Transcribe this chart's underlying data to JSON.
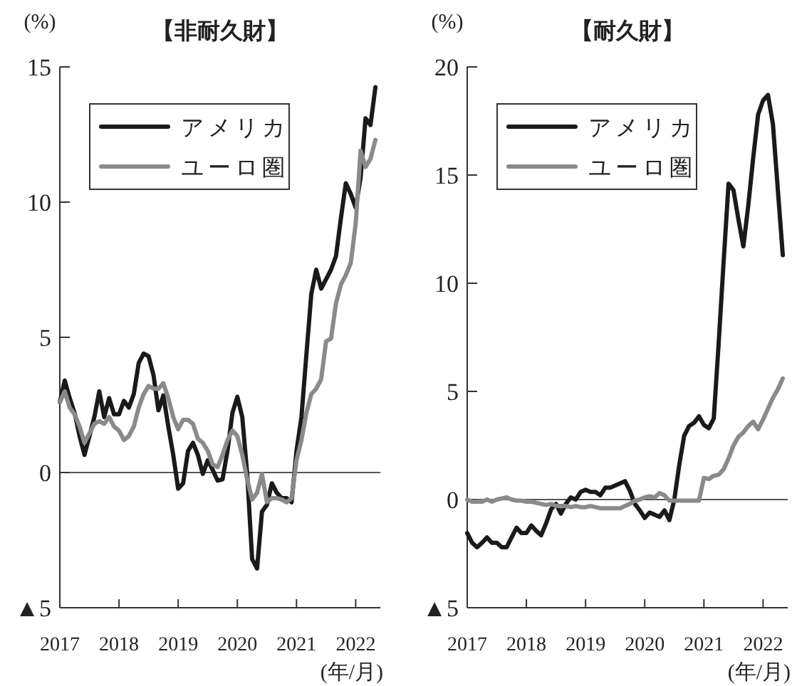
{
  "chart_data": [
    {
      "type": "line",
      "title": "【非耐久財】",
      "ylabel": "(%)",
      "xlabel": "(年/月)",
      "x": [
        "2017-01",
        "2017-02",
        "2017-03",
        "2017-04",
        "2017-05",
        "2017-06",
        "2017-07",
        "2017-08",
        "2017-09",
        "2017-10",
        "2017-11",
        "2017-12",
        "2018-01",
        "2018-02",
        "2018-03",
        "2018-04",
        "2018-05",
        "2018-06",
        "2018-07",
        "2018-08",
        "2018-09",
        "2018-10",
        "2018-11",
        "2018-12",
        "2019-01",
        "2019-02",
        "2019-03",
        "2019-04",
        "2019-05",
        "2019-06",
        "2019-07",
        "2019-08",
        "2019-09",
        "2019-10",
        "2019-11",
        "2019-12",
        "2020-01",
        "2020-02",
        "2020-03",
        "2020-04",
        "2020-05",
        "2020-06",
        "2020-07",
        "2020-08",
        "2020-09",
        "2020-10",
        "2020-11",
        "2020-12",
        "2021-01",
        "2021-02",
        "2021-03",
        "2021-04",
        "2021-05",
        "2021-06",
        "2021-07",
        "2021-08",
        "2021-09",
        "2021-10",
        "2021-11",
        "2021-12",
        "2022-01",
        "2022-02",
        "2022-03",
        "2022-04",
        "2022-05"
      ],
      "series": [
        {
          "name": "アメリカ",
          "color": "#1a1a1a",
          "values": [
            2.6,
            3.4,
            2.75,
            2.2,
            1.35,
            0.65,
            1.35,
            2.05,
            3.0,
            2.05,
            2.75,
            2.15,
            2.15,
            2.65,
            2.4,
            2.9,
            4.05,
            4.4,
            4.3,
            3.6,
            2.3,
            2.85,
            1.7,
            0.65,
            -0.6,
            -0.4,
            0.8,
            1.1,
            0.65,
            -0.05,
            0.45,
            0.1,
            -0.3,
            -0.25,
            0.8,
            2.2,
            2.8,
            2.05,
            -0.05,
            -3.2,
            -3.55,
            -1.45,
            -1.2,
            -0.4,
            -0.75,
            -0.95,
            -0.95,
            -1.1,
            0.8,
            2.05,
            4.35,
            6.6,
            7.5,
            6.8,
            7.15,
            7.5,
            8.0,
            9.4,
            10.7,
            10.3,
            9.8,
            10.9,
            13.1,
            12.85,
            14.25
          ]
        },
        {
          "name": "ユーロ圏",
          "color": "#8a8a8a",
          "values": [
            2.6,
            3.0,
            2.4,
            2.15,
            1.7,
            1.1,
            1.45,
            1.8,
            1.9,
            1.8,
            2.05,
            1.7,
            1.55,
            1.2,
            1.35,
            1.7,
            2.4,
            2.9,
            3.2,
            3.1,
            3.1,
            3.3,
            2.75,
            2.05,
            1.6,
            1.95,
            1.95,
            1.8,
            1.25,
            1.1,
            0.8,
            0.3,
            0.2,
            0.65,
            1.2,
            1.55,
            1.35,
            0.65,
            -0.25,
            -1.0,
            -0.75,
            -0.05,
            -1.1,
            -0.95,
            -0.95,
            -1.0,
            -1.1,
            -0.95,
            0.45,
            1.2,
            2.2,
            2.9,
            3.1,
            3.45,
            4.85,
            4.95,
            6.25,
            6.95,
            7.3,
            7.75,
            9.2,
            11.9,
            11.3,
            11.6,
            12.3
          ]
        }
      ],
      "xlim": [
        "2017-01",
        "2022-06"
      ],
      "xticks": [
        "2017",
        "2018",
        "2019",
        "2020",
        "2021",
        "2022"
      ],
      "ylim": [
        -5,
        15
      ],
      "yticks": [
        {
          "value": -5,
          "label": "▲5"
        },
        0,
        5,
        10,
        15
      ],
      "ref_lines": [
        {
          "axis": "y",
          "value": 0,
          "color": "#555555"
        }
      ],
      "grid": false,
      "legend": "top left",
      "line_style": "solid",
      "marker": "none"
    },
    {
      "type": "line",
      "title": "【耐久財】",
      "ylabel": "(%)",
      "xlabel": "(年/月)",
      "x": [
        "2017-01",
        "2017-02",
        "2017-03",
        "2017-04",
        "2017-05",
        "2017-06",
        "2017-07",
        "2017-08",
        "2017-09",
        "2017-10",
        "2017-11",
        "2017-12",
        "2018-01",
        "2018-02",
        "2018-03",
        "2018-04",
        "2018-05",
        "2018-06",
        "2018-07",
        "2018-08",
        "2018-09",
        "2018-10",
        "2018-11",
        "2018-12",
        "2019-01",
        "2019-02",
        "2019-03",
        "2019-04",
        "2019-05",
        "2019-06",
        "2019-07",
        "2019-08",
        "2019-09",
        "2019-10",
        "2019-11",
        "2019-12",
        "2020-01",
        "2020-02",
        "2020-03",
        "2020-04",
        "2020-05",
        "2020-06",
        "2020-07",
        "2020-08",
        "2020-09",
        "2020-10",
        "2020-11",
        "2020-12",
        "2021-01",
        "2021-02",
        "2021-03",
        "2021-04",
        "2021-05",
        "2021-06",
        "2021-07",
        "2021-08",
        "2021-09",
        "2021-10",
        "2021-11",
        "2021-12",
        "2022-01",
        "2022-02",
        "2022-03",
        "2022-04",
        "2022-05"
      ],
      "series": [
        {
          "name": "アメリカ",
          "color": "#1a1a1a",
          "values": [
            -1.55,
            -2.0,
            -2.2,
            -2.0,
            -1.75,
            -2.0,
            -2.0,
            -2.2,
            -2.2,
            -1.75,
            -1.3,
            -1.55,
            -1.55,
            -1.2,
            -1.45,
            -1.65,
            -1.1,
            -0.45,
            -0.2,
            -0.65,
            -0.2,
            0.1,
            0.0,
            0.35,
            0.45,
            0.35,
            0.35,
            0.2,
            0.55,
            0.55,
            0.65,
            0.75,
            0.85,
            0.4,
            -0.2,
            -0.5,
            -0.85,
            -0.6,
            -0.7,
            -0.8,
            -0.5,
            -0.95,
            0.0,
            1.6,
            2.95,
            3.4,
            3.55,
            3.85,
            3.45,
            3.3,
            3.75,
            7.25,
            11.0,
            14.6,
            14.3,
            12.95,
            11.7,
            13.6,
            15.8,
            17.8,
            18.45,
            18.7,
            17.35,
            14.3,
            11.3
          ]
        },
        {
          "name": "ユーロ圏",
          "color": "#8a8a8a",
          "values": [
            0.0,
            -0.1,
            -0.1,
            -0.1,
            0.0,
            -0.1,
            0.0,
            0.05,
            0.1,
            0.0,
            -0.05,
            -0.05,
            -0.1,
            -0.1,
            -0.15,
            -0.2,
            -0.25,
            -0.2,
            -0.3,
            -0.3,
            -0.3,
            -0.35,
            -0.3,
            -0.35,
            -0.35,
            -0.3,
            -0.35,
            -0.4,
            -0.4,
            -0.4,
            -0.4,
            -0.4,
            -0.3,
            -0.2,
            -0.05,
            0.0,
            0.1,
            0.15,
            0.1,
            0.3,
            0.2,
            -0.05,
            -0.05,
            -0.05,
            -0.05,
            -0.05,
            -0.05,
            -0.05,
            1.0,
            0.95,
            1.1,
            1.15,
            1.4,
            1.9,
            2.5,
            2.9,
            3.1,
            3.4,
            3.6,
            3.25,
            3.7,
            4.2,
            4.7,
            5.1,
            5.6
          ]
        }
      ],
      "xlim": [
        "2017-01",
        "2022-06"
      ],
      "xticks": [
        "2017",
        "2018",
        "2019",
        "2020",
        "2021",
        "2022"
      ],
      "ylim": [
        -5,
        20
      ],
      "yticks": [
        {
          "value": -5,
          "label": "▲5"
        },
        0,
        5,
        10,
        15,
        20
      ],
      "ref_lines": [
        {
          "axis": "y",
          "value": 0,
          "color": "#555555"
        }
      ],
      "grid": false,
      "legend": "top left",
      "line_style": "solid",
      "marker": "none"
    }
  ]
}
